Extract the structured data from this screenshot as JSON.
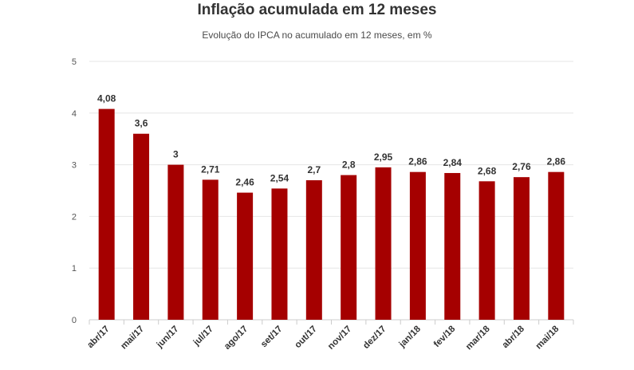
{
  "chart_data": {
    "type": "bar",
    "title": "Inflação acumulada em 12 meses",
    "subtitle": "Evolução do IPCA no acumulado em 12 meses, em %",
    "categories": [
      "abr/17",
      "mai/17",
      "jun/17",
      "jul/17",
      "ago/17",
      "set/17",
      "out/17",
      "nov/17",
      "dez/17",
      "jan/18",
      "fev/18",
      "mar/18",
      "abr/18",
      "mai/18"
    ],
    "values": [
      4.08,
      3.6,
      3,
      2.71,
      2.46,
      2.54,
      2.7,
      2.8,
      2.95,
      2.86,
      2.84,
      2.68,
      2.76,
      2.86
    ],
    "data_labels": [
      "4,08",
      "3,6",
      "3",
      "2,71",
      "2,46",
      "2,54",
      "2,7",
      "2,8",
      "2,95",
      "2,86",
      "2,84",
      "2,68",
      "2,76",
      "2,86"
    ],
    "ylim": [
      0,
      5
    ],
    "yticks": [
      0,
      1,
      2,
      3,
      4,
      5
    ],
    "grid": true,
    "bar_color": "#a50000",
    "legend": "none"
  }
}
